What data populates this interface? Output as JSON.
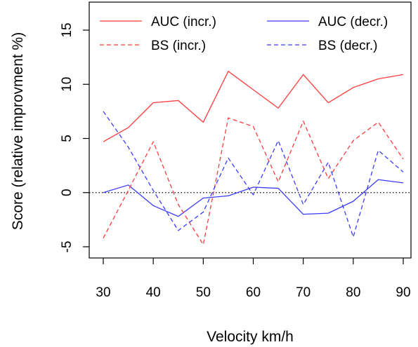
{
  "chart_data": {
    "type": "line",
    "xlabel": "Velocity km/h",
    "ylabel": "Score (relative improvment %)",
    "x": [
      30,
      35,
      40,
      45,
      50,
      55,
      60,
      65,
      70,
      75,
      80,
      85,
      90
    ],
    "xlim": [
      30,
      90
    ],
    "ylim": [
      -5,
      15
    ],
    "xticks": [
      30,
      40,
      50,
      60,
      70,
      80,
      90
    ],
    "yticks": [
      -5,
      0,
      5,
      10,
      15
    ],
    "reference_line": {
      "y": 0,
      "style": "dotted",
      "color": "#000000"
    },
    "grid": false,
    "legend_position": "top",
    "series": [
      {
        "name": "AUC (incr.)",
        "color": "#ff3b3b",
        "dash": "solid",
        "values": [
          4.7,
          6.0,
          8.3,
          8.5,
          6.5,
          11.2,
          9.5,
          7.8,
          10.9,
          8.3,
          9.7,
          10.5,
          10.9
        ]
      },
      {
        "name": "AUC (decr.)",
        "color": "#3b3bff",
        "dash": "solid",
        "values": [
          0.0,
          0.7,
          -1.2,
          -2.2,
          -0.5,
          -0.3,
          0.5,
          0.4,
          -2.0,
          -1.9,
          -0.8,
          1.2,
          0.9
        ]
      },
      {
        "name": "BS (incr.)",
        "color": "#ff3b3b",
        "dash": "dashed",
        "values": [
          -4.2,
          0.2,
          4.7,
          -1.1,
          -4.8,
          6.9,
          6.1,
          1.0,
          6.6,
          1.3,
          4.8,
          6.5,
          3.1
        ]
      },
      {
        "name": "BS (decr.)",
        "color": "#3b3bff",
        "dash": "dashed",
        "values": [
          7.5,
          4.2,
          0.2,
          -3.5,
          -1.8,
          3.2,
          -0.2,
          4.8,
          -1.1,
          2.8,
          -4.1,
          3.9,
          1.9
        ]
      }
    ]
  }
}
